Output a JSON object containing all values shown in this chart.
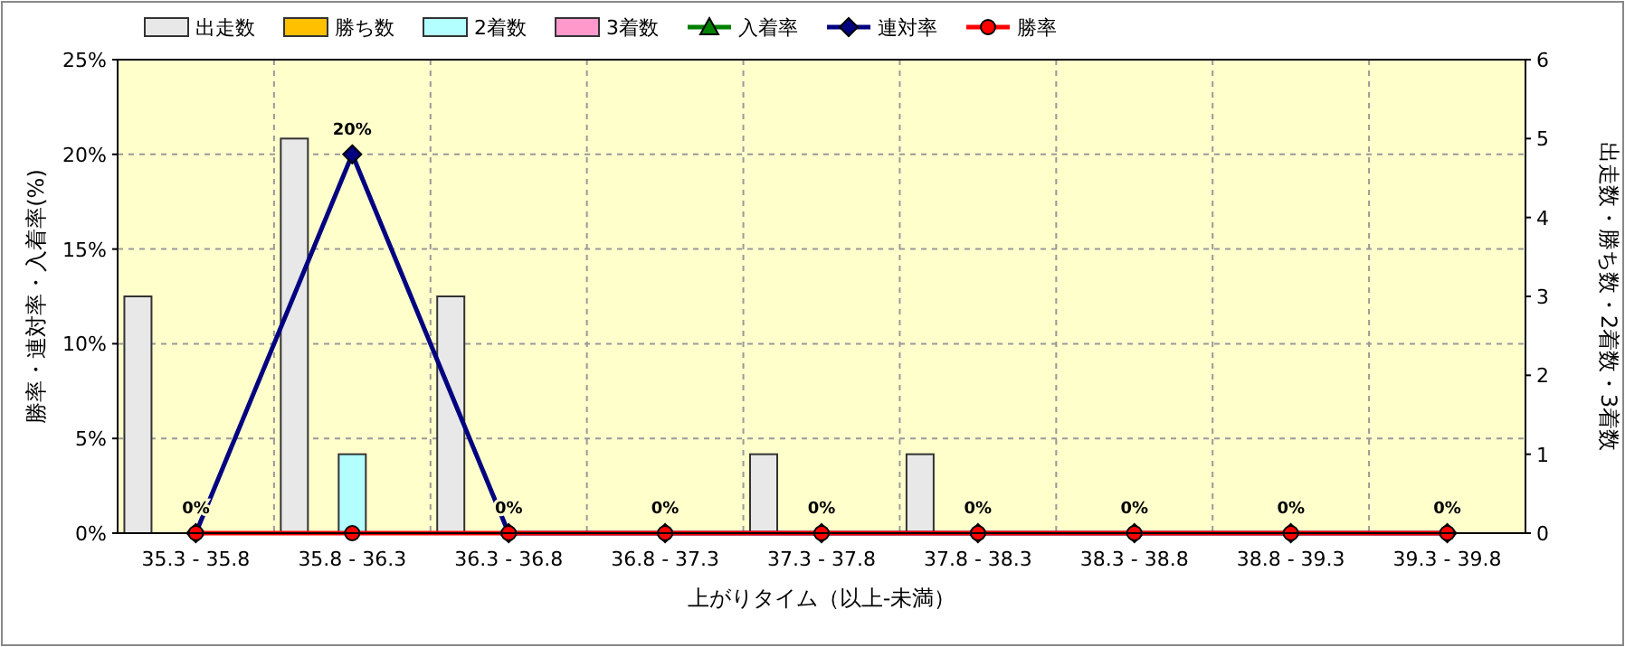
{
  "chart_data": {
    "type": "bar",
    "xlabel": "上がりタイム（以上-未満）",
    "ylabel": "勝率・連対率・入着率(%)",
    "y2label": "出走数・勝ち数・2着数・3着数",
    "categories": [
      "35.3 - 35.8",
      "35.8 - 36.3",
      "36.3 - 36.8",
      "36.8 - 37.3",
      "37.3 - 37.8",
      "37.8 - 38.3",
      "38.3 - 38.8",
      "38.8 - 39.3",
      "39.3 - 39.8"
    ],
    "series": [
      {
        "name": "出走数",
        "axis": "y2",
        "color": "#e8e8e8",
        "values": [
          3,
          5,
          3,
          0,
          1,
          1,
          0,
          0,
          0
        ]
      },
      {
        "name": "勝ち数",
        "axis": "y2",
        "color": "#ffc000",
        "values": [
          0,
          0,
          0,
          0,
          0,
          0,
          0,
          0,
          0
        ]
      },
      {
        "name": "2着数",
        "axis": "y2",
        "color": "#b3ffff",
        "values": [
          0,
          1,
          0,
          0,
          0,
          0,
          0,
          0,
          0
        ]
      },
      {
        "name": "3着数",
        "axis": "y2",
        "color": "#ff99cc",
        "values": [
          0,
          0,
          0,
          0,
          0,
          0,
          0,
          0,
          0
        ]
      },
      {
        "name": "入着率",
        "type": "line",
        "marker": "triangle",
        "color": "#008000",
        "values": [
          null,
          null,
          null,
          null,
          null,
          null,
          null,
          null,
          null
        ]
      },
      {
        "name": "連対率",
        "type": "line",
        "marker": "diamond",
        "color": "#000080",
        "values": [
          0,
          20,
          0,
          0,
          0,
          0,
          0,
          0,
          0
        ],
        "value_labels": [
          "0%",
          "20%",
          "0%",
          "0%",
          "0%",
          "0%",
          "0%",
          "0%",
          "0%"
        ]
      },
      {
        "name": "勝率",
        "type": "line",
        "marker": "circle",
        "color": "#ff0000",
        "values": [
          0,
          0,
          0,
          0,
          0,
          0,
          0,
          0,
          0
        ]
      }
    ],
    "ylim": [
      0,
      25
    ],
    "yticks": [
      {
        "value": 0,
        "label": "0%"
      },
      {
        "value": 5,
        "label": "5%"
      },
      {
        "value": 10,
        "label": "10%"
      },
      {
        "value": 15,
        "label": "15%"
      },
      {
        "value": 20,
        "label": "20%"
      },
      {
        "value": 25,
        "label": "25%"
      }
    ],
    "y2lim": [
      0,
      6
    ],
    "y2ticks": [
      0,
      1,
      2,
      3,
      4,
      5,
      6
    ],
    "grid": true,
    "legend": "top left"
  }
}
